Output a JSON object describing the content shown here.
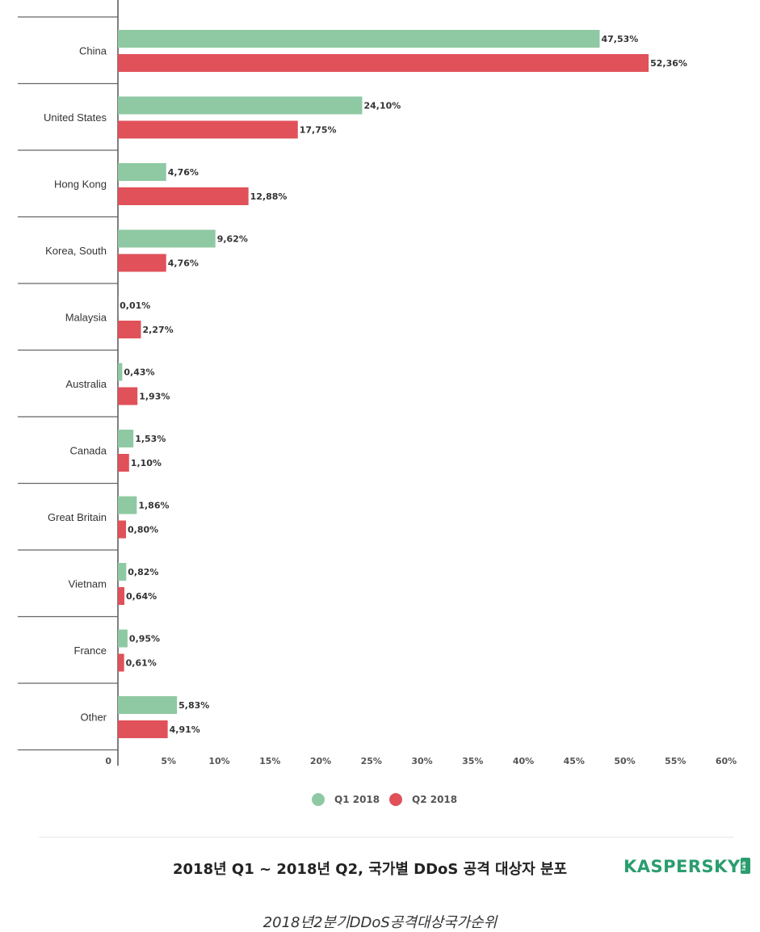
{
  "chart_data": {
    "type": "bar",
    "orientation": "horizontal",
    "categories": [
      "China",
      "United States",
      "Hong Kong",
      "Korea, South",
      "Malaysia",
      "Australia",
      "Canada",
      "Great Britain",
      "Vietnam",
      "France",
      "Other"
    ],
    "series": [
      {
        "name": "Q1 2018",
        "color": "#8fc9a3",
        "values": [
          47.53,
          24.1,
          4.76,
          9.62,
          0.01,
          0.43,
          1.53,
          1.86,
          0.82,
          0.95,
          5.83
        ],
        "labels": [
          "47,53%",
          "24,10%",
          "4,76%",
          "9,62%",
          "0,01%",
          "0,43%",
          "1,53%",
          "1,86%",
          "0,82%",
          "0,95%",
          "5,83%"
        ]
      },
      {
        "name": "Q2 2018",
        "color": "#e0515a",
        "values": [
          52.36,
          17.75,
          12.88,
          4.76,
          2.27,
          1.93,
          1.1,
          0.8,
          0.64,
          0.61,
          4.91
        ],
        "labels": [
          "52,36%",
          "17,75%",
          "12,88%",
          "4,76%",
          "2,27%",
          "1,93%",
          "1,10%",
          "0,80%",
          "0,64%",
          "0,61%",
          "4,91%"
        ]
      }
    ],
    "xlim": [
      0,
      60
    ],
    "xticks": [
      0,
      5,
      10,
      15,
      20,
      25,
      30,
      35,
      40,
      45,
      50,
      55,
      60
    ],
    "xtick_labels": [
      "0",
      "5%",
      "10%",
      "15%",
      "20%",
      "25%",
      "30%",
      "35%",
      "40%",
      "45%",
      "50%",
      "55%",
      "60%"
    ],
    "legend_position": "bottom",
    "grid": false
  },
  "footer": {
    "title": "2018년 Q1 ~ 2018년 Q2, 국가별 DDoS 공격 대상자 분포",
    "logo_text": "KASPERSKY",
    "logo_badge": "lab",
    "logo_color": "#2a9d6e",
    "caption": "2018년2분기DDoS공격대상국가순위"
  }
}
